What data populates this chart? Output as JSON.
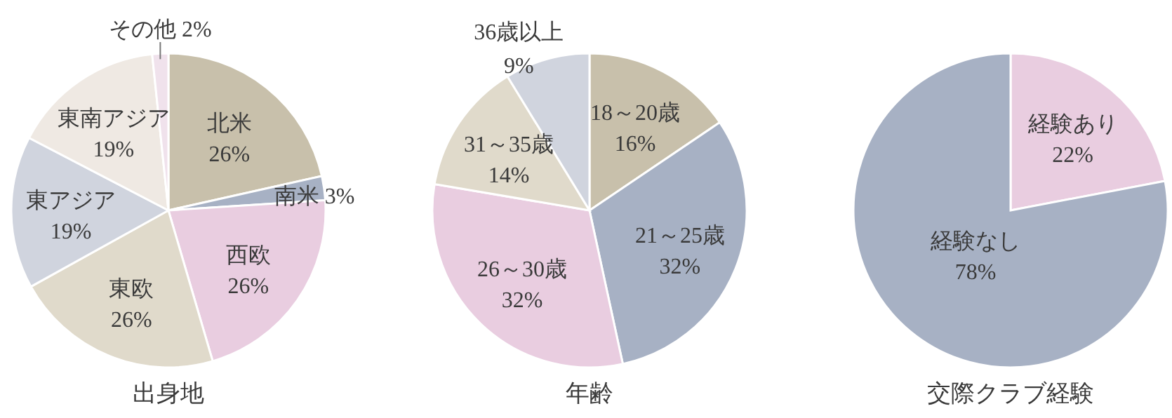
{
  "chart_data": [
    {
      "type": "pie",
      "title": "出身地",
      "categories": [
        "北米",
        "南米",
        "西欧",
        "東欧",
        "東アジア",
        "東南アジア",
        "その他"
      ],
      "values": [
        26,
        3,
        26,
        26,
        19,
        19,
        2
      ],
      "value_labels": [
        "26%",
        "3%",
        "26%",
        "26%",
        "19%",
        "19%",
        "2%"
      ],
      "colors": [
        "#c8c0ab",
        "#a7b1c4",
        "#e9cde0",
        "#e0dacb",
        "#d0d4de",
        "#efe9e3",
        "#f0e2ec"
      ]
    },
    {
      "type": "pie",
      "title": "年齢",
      "categories": [
        "18～20歳",
        "21～25歳",
        "26～30歳",
        "31～35歳",
        "36歳以上"
      ],
      "values": [
        16,
        32,
        32,
        14,
        9
      ],
      "value_labels": [
        "16%",
        "32%",
        "32%",
        "14%",
        "9%"
      ],
      "colors": [
        "#c8c0ab",
        "#a7b1c4",
        "#e9cde0",
        "#e0dacb",
        "#d0d4de"
      ]
    },
    {
      "type": "pie",
      "title": "交際クラブ経験",
      "categories": [
        "経験あり",
        "経験なし"
      ],
      "values": [
        22,
        78
      ],
      "value_labels": [
        "22%",
        "78%"
      ],
      "colors": [
        "#e9cde0",
        "#a7b1c4"
      ]
    }
  ]
}
